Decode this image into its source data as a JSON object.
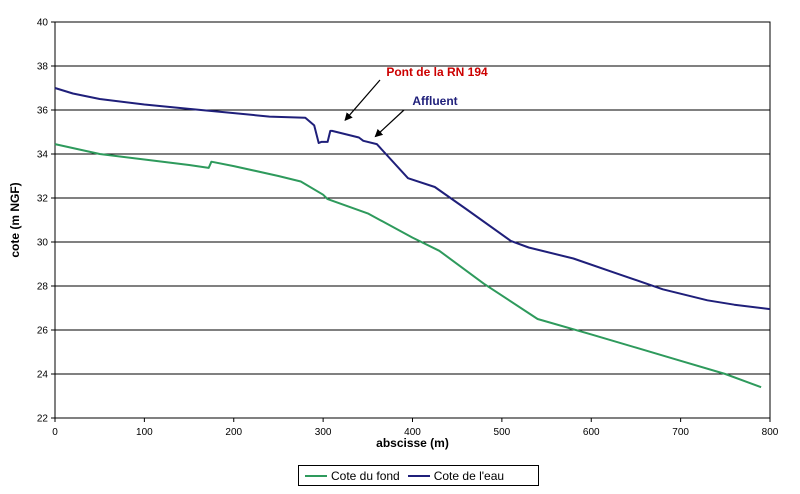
{
  "chart_data": {
    "type": "line",
    "xlabel": "abscisse (m)",
    "ylabel": "cote (m NGF)",
    "xlim": [
      0,
      800
    ],
    "ylim": [
      22,
      40
    ],
    "xticks": [
      "0",
      "100",
      "200",
      "300",
      "400",
      "500",
      "600",
      "700",
      "800"
    ],
    "yticks": [
      "22",
      "24",
      "26",
      "28",
      "30",
      "32",
      "34",
      "36",
      "38",
      "40"
    ],
    "grid": "horizontal",
    "legend_position": "bottom",
    "series": [
      {
        "name": "Cote du fond",
        "color": "#2e9a5c",
        "x": [
          0,
          50,
          100,
          150,
          172,
          175,
          200,
          250,
          275,
          300,
          305,
          350,
          400,
          430,
          480,
          540,
          600,
          650,
          700,
          750,
          790
        ],
        "y": [
          34.45,
          34.0,
          33.75,
          33.5,
          33.37,
          33.65,
          33.45,
          33.0,
          32.75,
          32.15,
          31.95,
          31.3,
          30.2,
          29.6,
          28.1,
          26.5,
          25.8,
          25.2,
          24.6,
          24.0,
          23.4
        ]
      },
      {
        "name": "Cote de l'eau",
        "color": "#1f1f7a",
        "x": [
          0,
          20,
          50,
          100,
          150,
          190,
          240,
          280,
          290,
          295,
          298,
          300,
          305,
          308,
          310,
          340,
          345,
          360,
          395,
          425,
          460,
          510,
          530,
          580,
          630,
          680,
          730,
          760,
          800
        ],
        "y": [
          37.0,
          36.75,
          36.5,
          36.25,
          36.05,
          35.9,
          35.7,
          35.65,
          35.3,
          34.5,
          34.55,
          34.55,
          34.55,
          35.05,
          35.05,
          34.75,
          34.6,
          34.45,
          32.9,
          32.5,
          31.5,
          30.05,
          29.75,
          29.25,
          28.55,
          27.85,
          27.35,
          27.15,
          26.95
        ]
      }
    ],
    "annotations": [
      {
        "text": "Pont de la RN 194",
        "color": "#cc0000",
        "x": 300,
        "y": 35.4
      },
      {
        "text": "Affluent",
        "color": "#1f1f7a",
        "x": 355,
        "y": 34.7
      }
    ]
  }
}
